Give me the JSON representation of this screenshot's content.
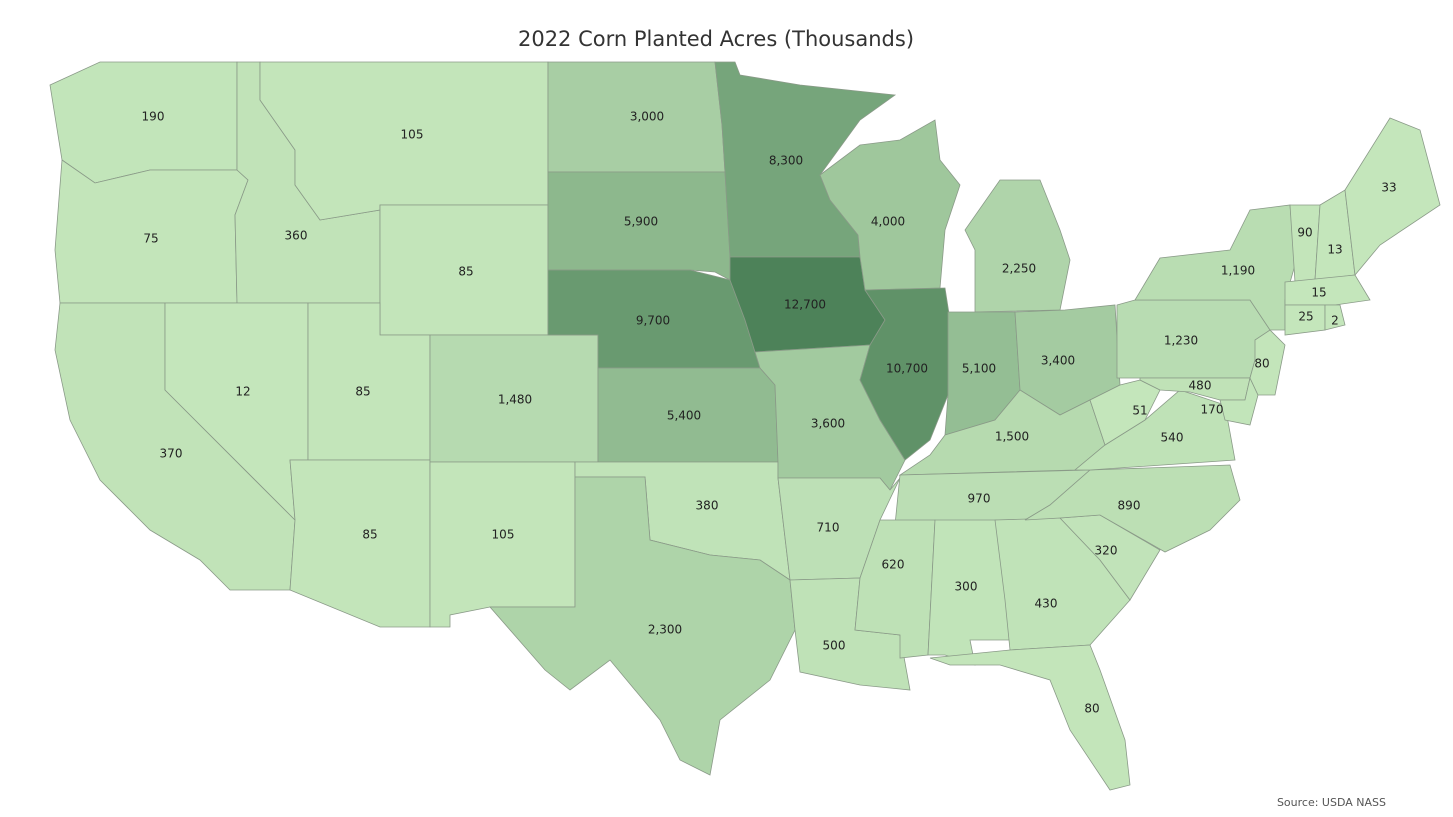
{
  "chart_data": {
    "type": "choropleth",
    "title": "2022 Corn Planted Acres (Thousands)",
    "source": "Source: USDA NASS",
    "values": [
      190,
      75,
      360,
      105,
      85,
      370,
      12,
      85,
      85,
      1480,
      105,
      3000,
      5900,
      9700,
      5400,
      380,
      2300,
      8300,
      12700,
      3600,
      710,
      500,
      4000,
      10700,
      2250,
      5100,
      3400,
      1500,
      970,
      620,
      300,
      430,
      80,
      320,
      890,
      540,
      51,
      1230,
      1190,
      480,
      170,
      80,
      90,
      13,
      33,
      15,
      25,
      2
    ],
    "value_labels": [
      "190",
      "75",
      "360",
      "105",
      "85",
      "370",
      "12",
      "85",
      "85",
      "1,480",
      "105",
      "3,000",
      "5,900",
      "9,700",
      "5,400",
      "380",
      "2,300",
      "8,300",
      "12,700",
      "3,600",
      "710",
      "500",
      "4,000",
      "10,700",
      "2,250",
      "5,100",
      "3,400",
      "1,500",
      "970",
      "620",
      "300",
      "430",
      "80",
      "320",
      "890",
      "540",
      "51",
      "1,230",
      "1,190",
      "480",
      "170",
      "80",
      "90",
      "13",
      "33",
      "15",
      "25",
      "2"
    ],
    "color_scale": [
      "#c4e6bb",
      "#4d8259"
    ]
  }
}
